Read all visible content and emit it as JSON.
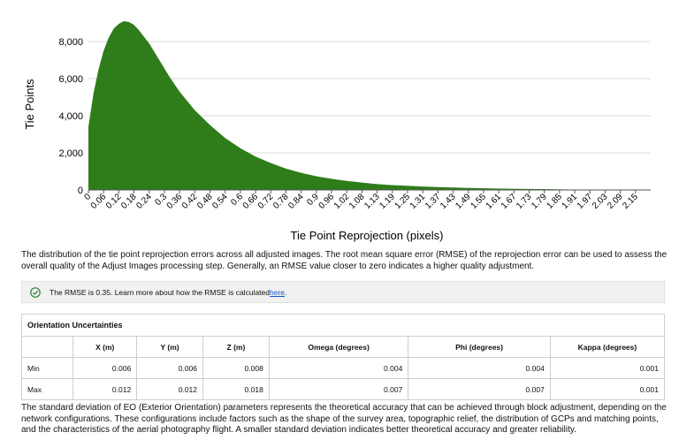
{
  "chart_data": {
    "type": "bar",
    "title": "",
    "xlabel": "Tie Point Reprojection (pixels)",
    "ylabel": "Tie Points",
    "ylim": [
      0,
      9000
    ],
    "yticks": [
      "0",
      "2,000",
      "4,000",
      "6,000",
      "8,000"
    ],
    "xticks": [
      "0",
      "0.06",
      "0.12",
      "0.18",
      "0.24",
      "0.3",
      "0.36",
      "0.42",
      "0.48",
      "0.54",
      "0.6",
      "0.66",
      "0.72",
      "0.78",
      "0.84",
      "0.9",
      "0.96",
      "1.02",
      "1.08",
      "1.13",
      "1.19",
      "1.25",
      "1.31",
      "1.37",
      "1.43",
      "1.49",
      "1.55",
      "1.61",
      "1.67",
      "1.73",
      "1.79",
      "1.85",
      "1.91",
      "1.97",
      "2.03",
      "2.09",
      "2.15"
    ],
    "bar_color": "#2e7d1a",
    "x": [
      0.0,
      0.02,
      0.04,
      0.06,
      0.08,
      0.1,
      0.12,
      0.14,
      0.16,
      0.18,
      0.2,
      0.24,
      0.28,
      0.32,
      0.36,
      0.42,
      0.48,
      0.54,
      0.6,
      0.66,
      0.72,
      0.78,
      0.84,
      0.9,
      0.96,
      1.02,
      1.08,
      1.13,
      1.19,
      1.25,
      1.31,
      1.37,
      1.43,
      1.49,
      1.55,
      1.61,
      1.67,
      1.73,
      1.79,
      1.85,
      1.91,
      1.97,
      2.03
    ],
    "values": [
      3400,
      5200,
      6500,
      7500,
      8200,
      8700,
      8950,
      9100,
      9050,
      8900,
      8600,
      7900,
      7000,
      6100,
      5300,
      4300,
      3500,
      2800,
      2250,
      1800,
      1450,
      1150,
      920,
      740,
      600,
      490,
      400,
      330,
      270,
      230,
      190,
      160,
      135,
      115,
      95,
      80,
      65,
      55,
      45,
      35,
      25,
      15,
      0
    ],
    "grid": true,
    "legend": "none"
  },
  "text": {
    "para1": "The distribution of the tie point reprojection errors across all adjusted images. The root mean square error (RMSE) of the reprojection error can be used to assess the overall quality of the Adjust Images processing step. Generally, an RMSE value closer to zero indicates a higher quality adjustment.",
    "rmse_note": "The RMSE is 0.35. Learn more about how the RMSE is calculated ",
    "rmse_link": "here",
    "rmse_dot": ".",
    "para2": "The standard deviation of EO (Exterior Orientation) parameters represents the theoretical accuracy that can be achieved through block adjustment, depending on the network configurations. These configurations include factors such as the shape of the survey area, topographic relief, the distribution of GCPs and matching points, and the characteristics of the aerial photography flight. A smaller standard deviation indicates better theoretical accuracy and greater reliability."
  },
  "orientation": {
    "title": "Orientation Uncertainties",
    "headers": [
      "",
      "X (m)",
      "Y (m)",
      "Z (m)",
      "Omega (degrees)",
      "Phi (degrees)",
      "Kappa (degrees)"
    ],
    "rows": [
      [
        "Min",
        "0.006",
        "0.006",
        "0.008",
        "0.004",
        "0.004",
        "0.001"
      ],
      [
        "Max",
        "0.012",
        "0.012",
        "0.018",
        "0.007",
        "0.007",
        "0.001"
      ]
    ]
  },
  "colors": {
    "check": "#2e7d32",
    "link": "#1155cc"
  }
}
